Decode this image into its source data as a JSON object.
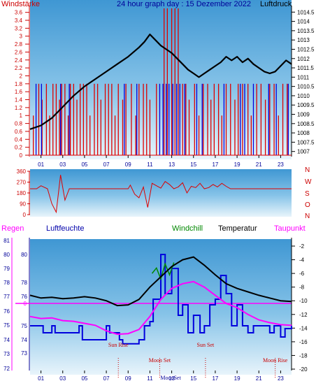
{
  "header": {
    "left_label": "Windstärke",
    "title": "24 hour graph day : 15 Dezember 2022",
    "right_label": "Luftdruck"
  },
  "colors": {
    "wind": "#dd0000",
    "gust": "#0000dd",
    "pressure": "#000000",
    "temperature": "#000000",
    "humidity": "#0000dd",
    "dewpoint": "#ff00ff",
    "windchill": "#008800",
    "rain": "#ff00ff",
    "axis_red": "#cc0000",
    "axis_blue": "#000099"
  },
  "chart_data": [
    {
      "type": "line",
      "name": "wind-pressure",
      "x_ticks": [
        "01",
        "03",
        "05",
        "07",
        "09",
        "11",
        "13",
        "15",
        "17",
        "19",
        "21",
        "23"
      ],
      "left_axis": {
        "label": "Windstärke",
        "ticks": [
          "3.6",
          "3.4",
          "3.2",
          "3",
          "2.8",
          "2.6",
          "2.4",
          "2.2",
          "2",
          "1.8",
          "1.6",
          "1.4",
          "1.2",
          "1",
          "0.8",
          "0.6",
          "0.4",
          "0.2",
          "0"
        ],
        "range": [
          0,
          3.7
        ]
      },
      "right_axis": {
        "label": "Luftdruck",
        "ticks": [
          "1014.5",
          "1014",
          "1013.5",
          "1013",
          "1012.5",
          "1012",
          "1011.5",
          "1011",
          "1010.5",
          "1010",
          "1009.5",
          "1009",
          "1008.5",
          "1008",
          "1007.5",
          "1007"
        ],
        "range": [
          1006.8,
          1014.7
        ]
      },
      "pressure_series": {
        "x": [
          0,
          1,
          2,
          3,
          4,
          5,
          6,
          7,
          8,
          9,
          10,
          10.5,
          11,
          11.5,
          12,
          12.5,
          13,
          13.5,
          14,
          14.5,
          15,
          15.5,
          16,
          16.5,
          17,
          17.5,
          18,
          18.5,
          19,
          19.5,
          20,
          20.5,
          21,
          21.5,
          22,
          22.5,
          23,
          23.5,
          24
        ],
        "values": [
          1008.2,
          1008.4,
          1008.8,
          1009.4,
          1010.0,
          1010.5,
          1010.9,
          1011.3,
          1011.7,
          1012.1,
          1012.6,
          1012.9,
          1013.3,
          1013.0,
          1012.7,
          1012.5,
          1012.3,
          1012.0,
          1011.7,
          1011.4,
          1011.2,
          1011.0,
          1011.2,
          1011.4,
          1011.6,
          1011.8,
          1012.1,
          1011.9,
          1012.1,
          1011.8,
          1012.0,
          1011.7,
          1011.5,
          1011.3,
          1011.2,
          1011.3,
          1011.6,
          1011.9,
          1011.7
        ]
      },
      "wind_bars": {
        "x": [
          0.3,
          0.8,
          1.1,
          1.5,
          1.8,
          2.1,
          2.4,
          2.7,
          2.9,
          3.2,
          3.5,
          3.7,
          4.0,
          4.3,
          4.6,
          4.9,
          5.2,
          5.5,
          5.9,
          6.2,
          6.5,
          6.9,
          7.2,
          7.5,
          7.8,
          8.1,
          8.5,
          8.8,
          9.3,
          9.7,
          10.0,
          10.4,
          10.7,
          11.0,
          11.6,
          12.3,
          12.6,
          13.0,
          13.3,
          13.6,
          14.0,
          14.3,
          14.6,
          15.1,
          15.5,
          15.9,
          16.3,
          16.6,
          16.9,
          17.3,
          17.6,
          18.0,
          18.4,
          18.8,
          19.1,
          19.5,
          20.0,
          20.3,
          20.8,
          21.2,
          21.6,
          22.0,
          22.4,
          22.8,
          23.2,
          23.6
        ],
        "values": [
          1.0,
          1.8,
          1.4,
          1.8,
          1.0,
          1.8,
          1.8,
          1.4,
          1.8,
          1.8,
          1.0,
          1.8,
          1.8,
          1.4,
          1.8,
          1.8,
          1.8,
          1.0,
          1.8,
          1.8,
          1.4,
          1.8,
          1.8,
          1.8,
          1.0,
          1.8,
          1.4,
          1.8,
          1.8,
          1.0,
          1.8,
          1.8,
          1.8,
          1.4,
          1.8,
          3.7,
          3.7,
          3.7,
          3.7,
          3.7,
          1.8,
          1.8,
          1.4,
          1.8,
          1.0,
          1.8,
          1.8,
          1.4,
          1.8,
          1.8,
          1.0,
          1.8,
          1.8,
          1.4,
          1.8,
          1.8,
          1.8,
          1.0,
          1.8,
          1.8,
          1.4,
          1.8,
          1.8,
          1.0,
          1.8,
          1.8
        ]
      },
      "gust_bars": {
        "x": [
          0.55,
          1.05,
          2.8,
          3.6,
          8.65,
          9.8,
          11.9,
          12.2,
          12.5,
          12.75,
          13.1,
          13.45,
          13.75,
          14.2,
          15.3,
          15.8,
          17.8,
          19.3,
          19.7,
          20.5,
          21.9,
          22.6,
          23.7
        ],
        "values": [
          1.8,
          1.8,
          1.8,
          1.8,
          1.8,
          1.8,
          1.8,
          1.8,
          1.8,
          1.8,
          1.8,
          1.8,
          1.8,
          1.8,
          1.8,
          1.8,
          1.8,
          1.8,
          1.8,
          1.8,
          1.8,
          1.8,
          1.8
        ]
      }
    },
    {
      "type": "line",
      "name": "wind-direction",
      "y_ticks": [
        "360",
        "270",
        "180",
        "90",
        "0"
      ],
      "right_labels": [
        "N",
        "W",
        "S",
        "O",
        "N"
      ],
      "range": [
        0,
        360
      ],
      "x": [
        0,
        0.6,
        1.0,
        1.6,
        2.0,
        2.4,
        2.8,
        3.2,
        3.6,
        4.0,
        5.0,
        6.0,
        7.0,
        8.0,
        9.0,
        9.2,
        9.6,
        10.0,
        10.4,
        10.8,
        11.2,
        11.6,
        12.0,
        12.4,
        12.8,
        13.2,
        13.6,
        14.0,
        14.4,
        14.8,
        15.2,
        15.6,
        16.0,
        16.4,
        16.8,
        17.2,
        17.6,
        18.0,
        18.4,
        20.0,
        22.0,
        24.0
      ],
      "values": [
        215,
        215,
        240,
        215,
        90,
        20,
        330,
        120,
        215,
        215,
        215,
        215,
        215,
        215,
        215,
        245,
        170,
        140,
        230,
        60,
        260,
        240,
        220,
        275,
        250,
        215,
        230,
        265,
        180,
        235,
        225,
        260,
        215,
        225,
        250,
        230,
        260,
        235,
        215,
        215,
        215,
        215
      ]
    },
    {
      "type": "line",
      "name": "temperature-humidity",
      "headers": {
        "rain": "Regen",
        "humidity": "Luftfeuchte",
        "windchill": "Windchill",
        "temperature": "Temperatur",
        "dewpoint": "Taupunkt"
      },
      "left_outer_ticks": [
        "81",
        "80",
        "79",
        "78",
        "77",
        "76",
        "75",
        "74",
        "73",
        "72"
      ],
      "left_inner_ticks": [
        "80",
        "78",
        "76",
        "75",
        "74",
        "73"
      ],
      "rain_zero": "0",
      "right_ticks": [
        "-2",
        "-4",
        "-6",
        "-8",
        "-10",
        "-12",
        "-14",
        "-16",
        "-18",
        "-20"
      ],
      "range": [
        -20.5,
        -1.2
      ],
      "x_ticks": [
        "01",
        "03",
        "05",
        "07",
        "09",
        "11",
        "13",
        "15",
        "17",
        "19",
        "21",
        "23"
      ],
      "temperature": {
        "x": [
          0,
          1,
          2,
          3,
          4,
          5,
          6,
          7,
          8,
          9,
          10,
          11,
          12,
          13,
          14,
          15,
          16,
          17,
          18,
          19,
          20,
          21,
          22,
          23,
          24
        ],
        "values": [
          -9.2,
          -9.6,
          -9.5,
          -9.7,
          -9.6,
          -9.4,
          -9.6,
          -10.0,
          -10.7,
          -10.6,
          -9.8,
          -8.0,
          -6.5,
          -5.0,
          -4.0,
          -3.6,
          -4.8,
          -6.2,
          -7.5,
          -8.2,
          -8.7,
          -9.2,
          -9.6,
          -10.0,
          -10.1
        ]
      },
      "dewpoint": {
        "x": [
          0,
          1,
          2,
          3,
          4,
          5,
          6,
          7,
          8,
          9,
          10,
          11,
          12,
          13,
          14,
          15,
          16,
          17,
          18,
          19,
          20,
          21,
          22,
          23,
          24
        ],
        "values": [
          -12.3,
          -12.6,
          -12.5,
          -12.9,
          -13.0,
          -13.3,
          -13.6,
          -14.4,
          -14.9,
          -14.8,
          -14.2,
          -12.3,
          -9.8,
          -8.2,
          -7.5,
          -7.2,
          -8.0,
          -9.2,
          -10.4,
          -11.0,
          -12.0,
          -12.8,
          -13.2,
          -13.5,
          -13.6
        ]
      },
      "humidity": {
        "x": [
          0,
          1.0,
          1.2,
          2.0,
          2.3,
          4.5,
          4.8,
          7.0,
          7.3,
          8.2,
          8.5,
          10.0,
          10.5,
          11.0,
          11.3,
          12.0,
          12.4,
          13.0,
          13.6,
          14.0,
          14.5,
          15.0,
          15.6,
          16.0,
          16.5,
          17.0,
          17.5,
          18.0,
          18.5,
          19.0,
          19.5,
          20.0,
          20.5,
          22.0,
          22.4,
          23.0,
          23.4,
          24.0
        ],
        "values": [
          75,
          75,
          74.5,
          75,
          74.5,
          75,
          74,
          75,
          74.5,
          74,
          73.7,
          74,
          75,
          75.2,
          76.5,
          80,
          77,
          79,
          75.5,
          76,
          74.5,
          75.5,
          74.5,
          75,
          76,
          76.5,
          78.5,
          77,
          75,
          76,
          75,
          74.5,
          75,
          74.5,
          75,
          74.2,
          74.8,
          75
        ]
      },
      "windchill": {
        "x": [
          11.2,
          11.6,
          12.0,
          12.4,
          12.8,
          13.2
        ],
        "values": [
          -6.0,
          -5.2,
          -6.8,
          -4.6,
          -6.2,
          -4.4
        ]
      },
      "events": [
        {
          "label": "Sun Rise",
          "x": 8.1
        },
        {
          "label": "Moon Set",
          "x": 11.9
        },
        {
          "label": "Sun Set",
          "x": 16.1
        },
        {
          "label": "Moon Rise",
          "x": 22.5
        },
        {
          "label": "MoonSet",
          "x": 12.9
        }
      ]
    }
  ]
}
